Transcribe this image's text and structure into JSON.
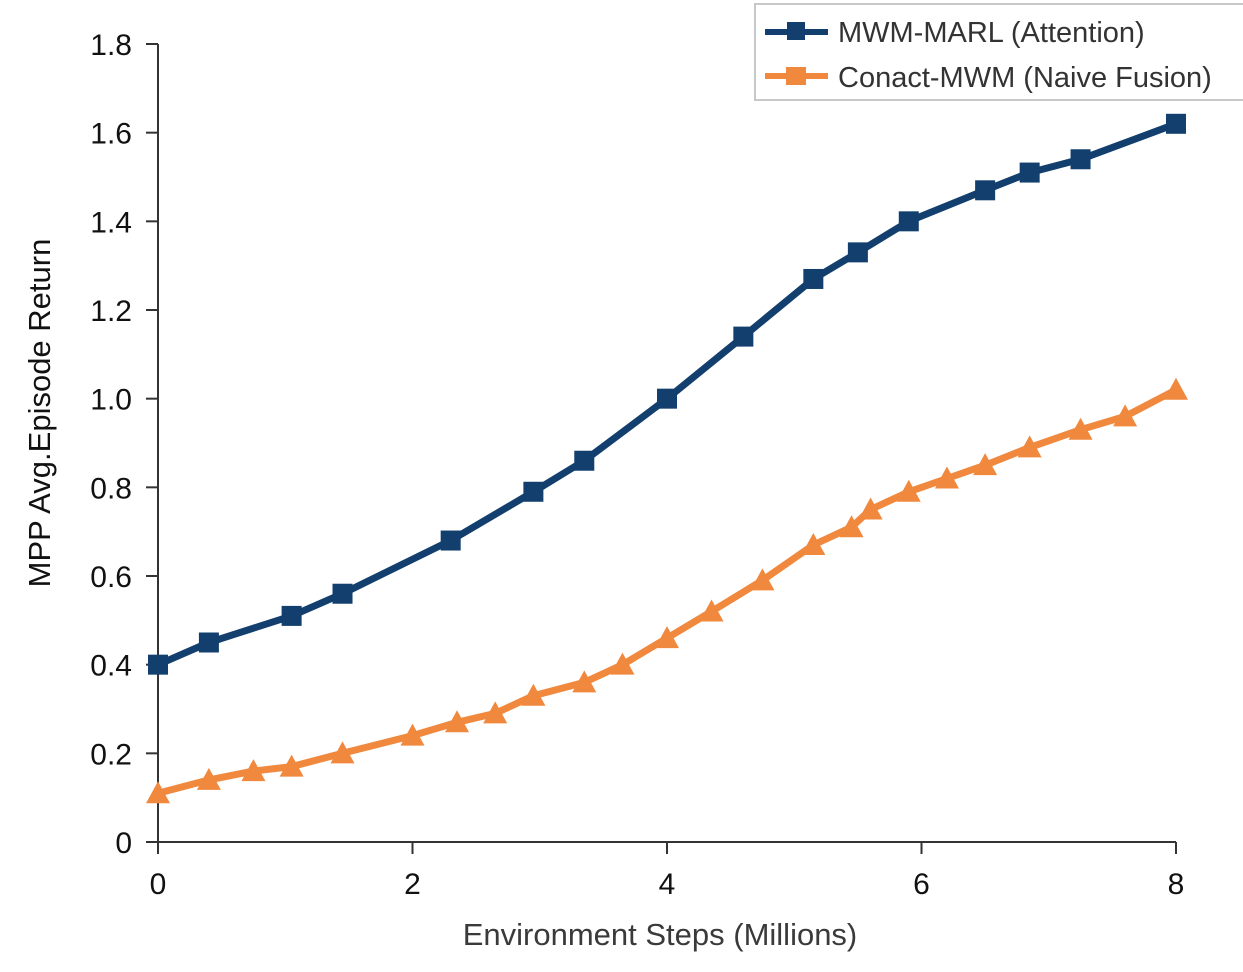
{
  "chart_data": {
    "type": "line",
    "title": "",
    "xlabel": "Environment Steps (Millions)",
    "ylabel": "MPP Avg.Episode Return",
    "xlim": [
      0,
      8
    ],
    "ylim": [
      0,
      1.8
    ],
    "x_ticks": [
      "0",
      "2",
      "4",
      "6",
      "8"
    ],
    "y_ticks": [
      "0",
      "0.2",
      "0.4",
      "0.6",
      "0.8",
      "1.0",
      "1.2",
      "1.4",
      "1.6",
      "1.8"
    ],
    "grid": false,
    "legend_position": "top-right",
    "series": [
      {
        "name": "MWM-MARL (Attention)",
        "color": "#123f6e",
        "marker": "square",
        "x": [
          0,
          0.4,
          1.05,
          1.45,
          2.3,
          2.95,
          3.35,
          4.0,
          4.6,
          5.15,
          5.5,
          5.9,
          6.5,
          6.85,
          7.25,
          8.0
        ],
        "y": [
          0.4,
          0.45,
          0.51,
          0.56,
          0.68,
          0.79,
          0.86,
          1.0,
          1.14,
          1.27,
          1.33,
          1.4,
          1.47,
          1.51,
          1.54,
          1.62
        ]
      },
      {
        "name": "Conact-MWM (Naive Fusion)",
        "color": "#f0893e",
        "marker": "triangle",
        "x": [
          0,
          0.4,
          0.75,
          1.05,
          1.45,
          2.0,
          2.35,
          2.65,
          2.95,
          3.35,
          3.65,
          4.0,
          4.35,
          4.75,
          5.15,
          5.45,
          5.6,
          5.9,
          6.2,
          6.5,
          6.85,
          7.25,
          7.6,
          8.0
        ],
        "y": [
          0.11,
          0.14,
          0.16,
          0.17,
          0.2,
          0.24,
          0.27,
          0.29,
          0.33,
          0.36,
          0.4,
          0.46,
          0.52,
          0.59,
          0.67,
          0.71,
          0.75,
          0.79,
          0.82,
          0.85,
          0.89,
          0.93,
          0.96,
          1.02
        ]
      }
    ]
  }
}
